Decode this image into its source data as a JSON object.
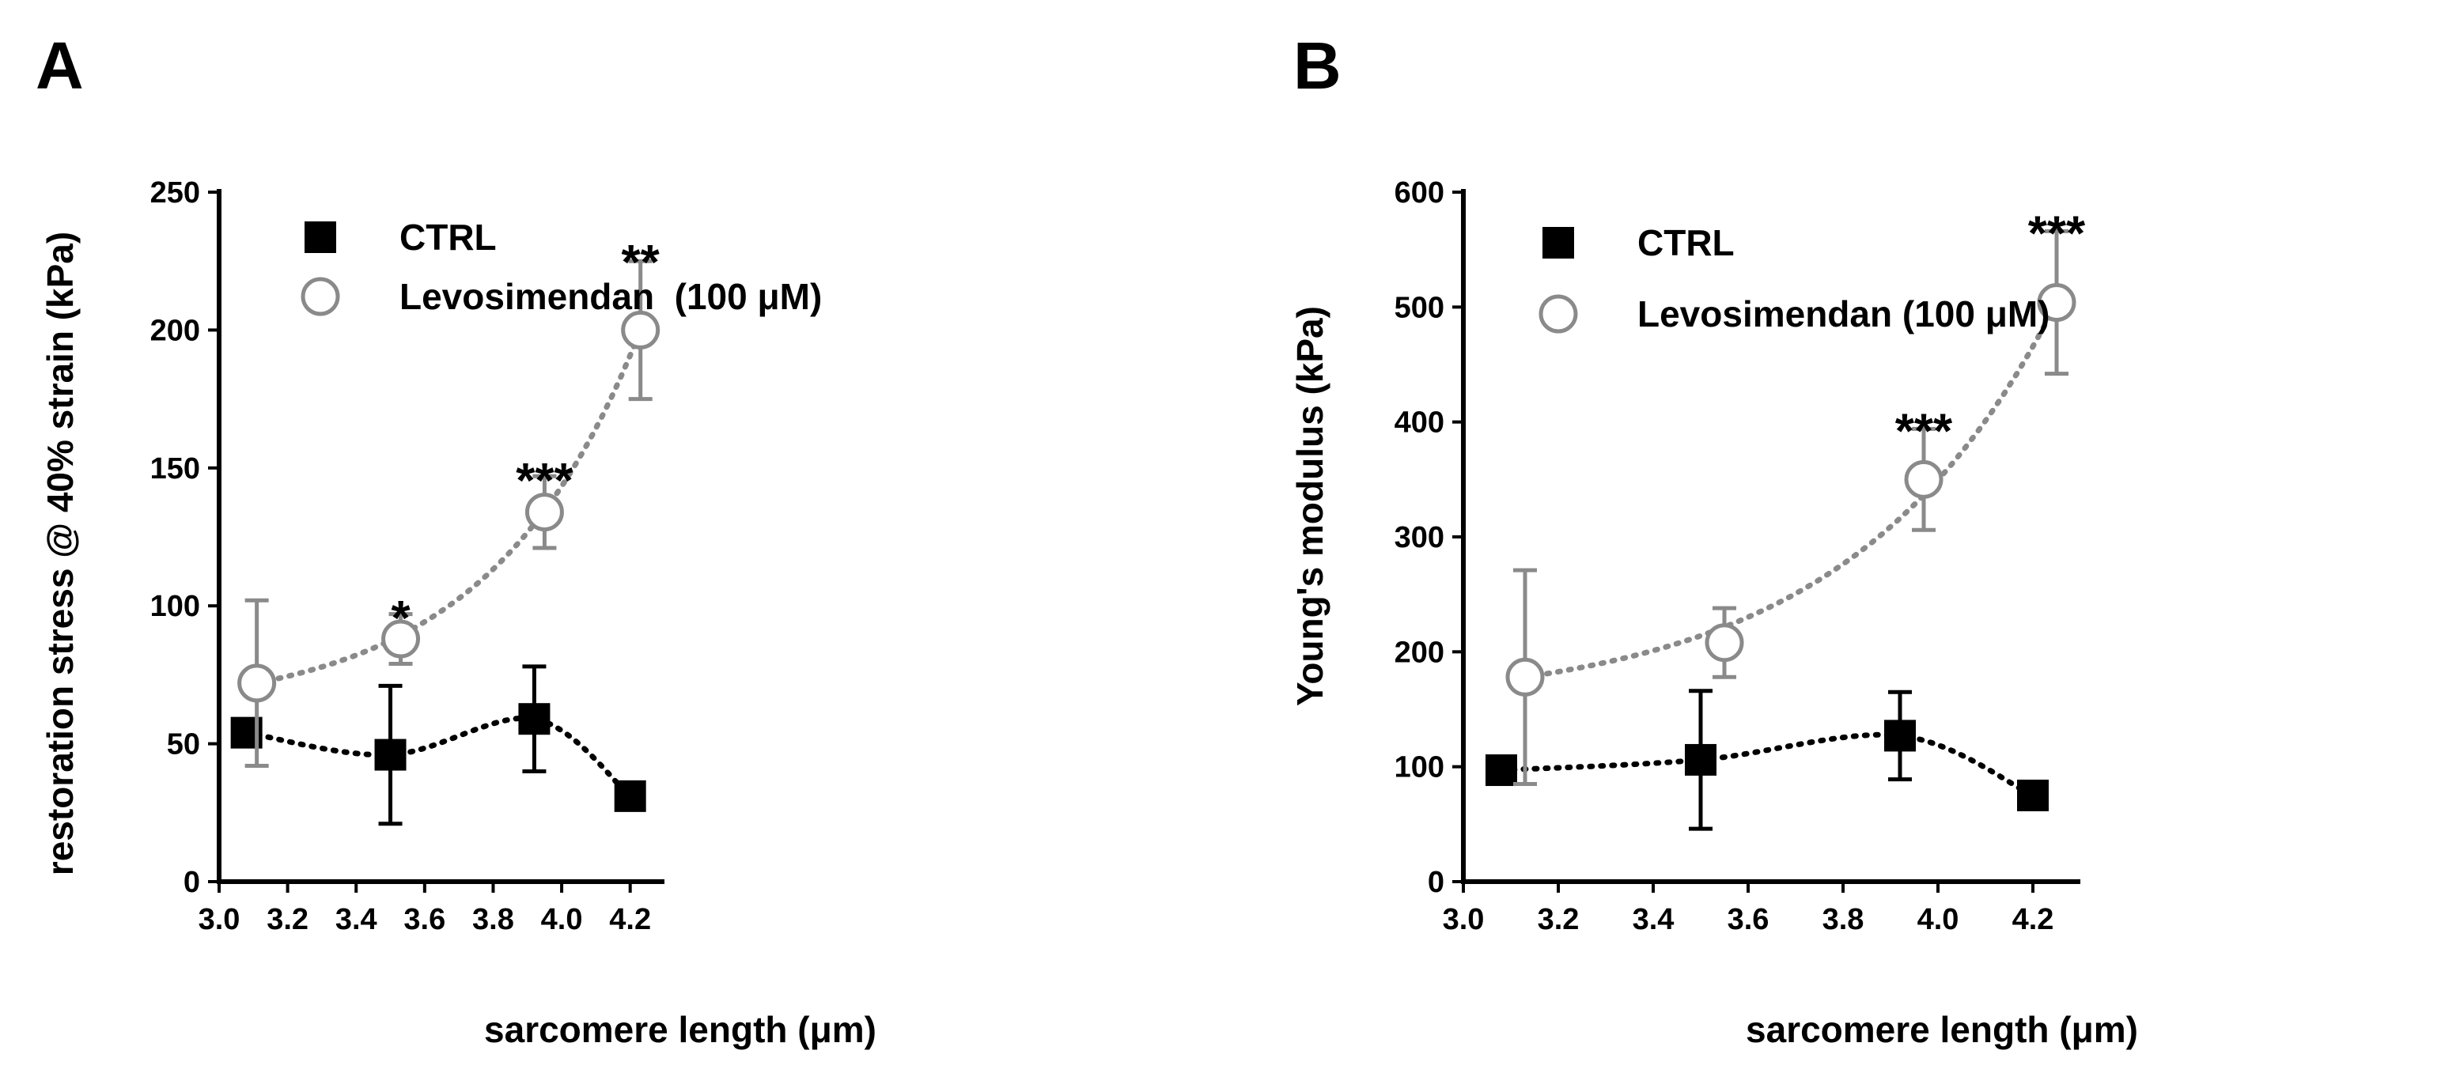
{
  "colors": {
    "ctrl": "#000000",
    "levo": "#8a8a8a",
    "axis": "#000000"
  },
  "chart_data": [
    {
      "panel": "A",
      "type": "scatter",
      "xlabel": "sarcomere length (μm)",
      "ylabel": "restoration stress @ 40% strain (kPa)",
      "xlim": [
        3.0,
        4.3
      ],
      "ylim": [
        0,
        250
      ],
      "xticks": [
        "3.0",
        "3.2",
        "3.4",
        "3.6",
        "3.8",
        "4.0",
        "4.2"
      ],
      "yticks": [
        "0",
        "50",
        "100",
        "150",
        "200",
        "250"
      ],
      "legend_placement": "top-left",
      "series": [
        {
          "name": "CTRL",
          "marker": "filled-square",
          "points": [
            {
              "x": 3.08,
              "y": 54,
              "err": 0
            },
            {
              "x": 3.5,
              "y": 46,
              "err": 25
            },
            {
              "x": 3.92,
              "y": 59,
              "err": 19
            },
            {
              "x": 4.2,
              "y": 31,
              "err": 0
            }
          ]
        },
        {
          "name": "Levosimendan  (100 μM)",
          "marker": "open-circle",
          "points": [
            {
              "x": 3.11,
              "y": 72,
              "err": 30
            },
            {
              "x": 3.53,
              "y": 88,
              "err": 9
            },
            {
              "x": 3.95,
              "y": 134,
              "err": 13
            },
            {
              "x": 4.23,
              "y": 200,
              "err": 25
            }
          ]
        }
      ],
      "annotations": [
        {
          "text": "*",
          "x": 3.53,
          "y": 98
        },
        {
          "text": "***",
          "x": 3.95,
          "y": 148
        },
        {
          "text": "**",
          "x": 4.23,
          "y": 227
        }
      ]
    },
    {
      "panel": "B",
      "type": "scatter",
      "xlabel": "sarcomere length (μm)",
      "ylabel": "Young's modulus (kPa)",
      "xlim": [
        3.0,
        4.3
      ],
      "ylim": [
        0,
        600
      ],
      "xticks": [
        "3.0",
        "3.2",
        "3.4",
        "3.6",
        "3.8",
        "4.0",
        "4.2"
      ],
      "yticks": [
        "0",
        "100",
        "200",
        "300",
        "400",
        "500",
        "600"
      ],
      "legend_placement": "top-left",
      "series": [
        {
          "name": "CTRL",
          "marker": "filled-square",
          "points": [
            {
              "x": 3.08,
              "y": 97,
              "err": 0
            },
            {
              "x": 3.5,
              "y": 106,
              "err": 60
            },
            {
              "x": 3.92,
              "y": 127,
              "err": 38
            },
            {
              "x": 4.2,
              "y": 75,
              "err": 0
            }
          ]
        },
        {
          "name": "Levosimendan (100 μM)",
          "marker": "open-circle",
          "points": [
            {
              "x": 3.13,
              "y": 178,
              "err": 93
            },
            {
              "x": 3.55,
              "y": 208,
              "err": 30
            },
            {
              "x": 3.97,
              "y": 350,
              "err": 44
            },
            {
              "x": 4.25,
              "y": 504,
              "err": 62
            }
          ]
        }
      ],
      "annotations": [
        {
          "text": "***",
          "x": 3.97,
          "y": 398
        },
        {
          "text": "***",
          "x": 4.25,
          "y": 570
        }
      ]
    }
  ]
}
